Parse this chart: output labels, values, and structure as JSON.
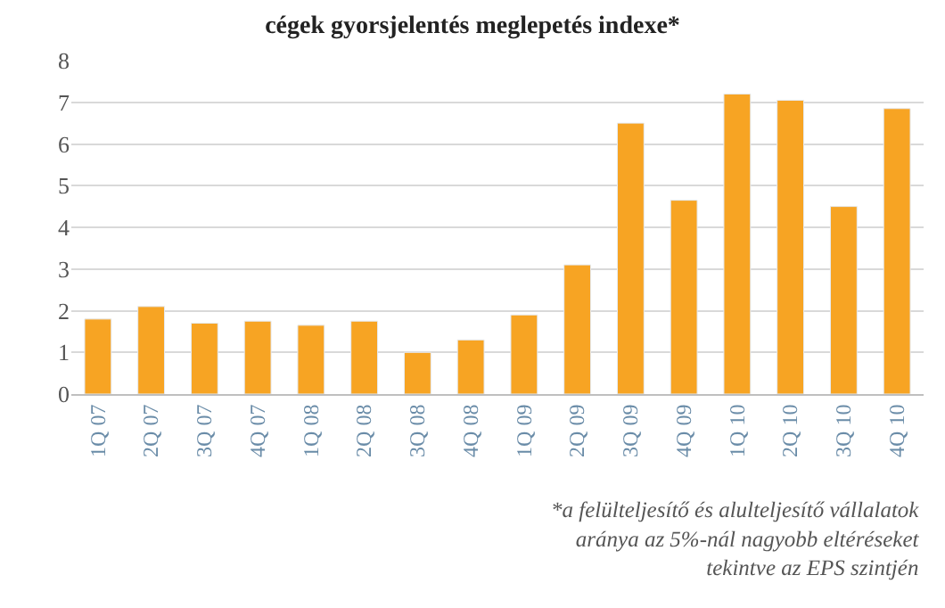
{
  "chart_data": {
    "type": "bar",
    "title": "cégek gyorsjelentés meglepetés indexe*",
    "categories": [
      "1Q 07",
      "2Q 07",
      "3Q 07",
      "4Q 07",
      "1Q 08",
      "2Q 08",
      "3Q 08",
      "4Q 08",
      "1Q 09",
      "2Q 09",
      "3Q 09",
      "4Q 09",
      "1Q 10",
      "2Q 10",
      "3Q 10",
      "4Q 10"
    ],
    "values": [
      1.8,
      2.1,
      1.7,
      1.75,
      1.65,
      1.75,
      1.0,
      1.3,
      1.9,
      3.1,
      6.5,
      4.65,
      7.2,
      7.05,
      4.5,
      6.85
    ],
    "color": "#f7a423",
    "ylim": [
      0,
      8
    ],
    "yticks": [
      0,
      1,
      2,
      3,
      4,
      5,
      6,
      7,
      8
    ],
    "grid": "y",
    "annotations": [
      "*a felülteljesítő és alulteljesítő vállalatok\naránya az 5%-nál nagyobb eltéréseket\ntekintve az EPS szintjén"
    ]
  }
}
